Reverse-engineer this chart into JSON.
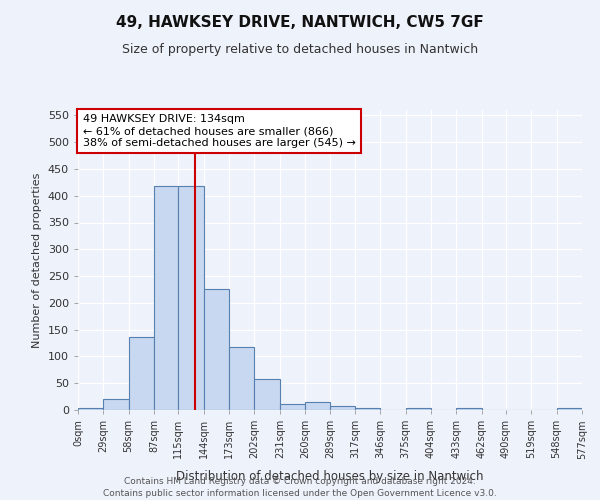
{
  "title1": "49, HAWKSEY DRIVE, NANTWICH, CW5 7GF",
  "title2": "Size of property relative to detached houses in Nantwich",
  "xlabel": "Distribution of detached houses by size in Nantwich",
  "ylabel": "Number of detached properties",
  "bin_edges": [
    0,
    29,
    58,
    87,
    115,
    144,
    173,
    202,
    231,
    260,
    289,
    317,
    346,
    375,
    404,
    433,
    462,
    490,
    519,
    548,
    577
  ],
  "bar_heights": [
    3,
    20,
    137,
    418,
    418,
    225,
    117,
    58,
    12,
    15,
    7,
    3,
    0,
    3,
    0,
    3,
    0,
    0,
    0,
    3
  ],
  "bar_color": "#c8d8f0",
  "bar_edge_color": "#5580b0",
  "property_line_x": 134,
  "annotation_line1": "49 HAWKSEY DRIVE: 134sqm",
  "annotation_line2": "← 61% of detached houses are smaller (866)",
  "annotation_line3": "38% of semi-detached houses are larger (545) →",
  "annotation_box_color": "#ffffff",
  "annotation_box_edge_color": "#cc0000",
  "vline_color": "#cc0000",
  "ylim": [
    0,
    560
  ],
  "yticks": [
    0,
    50,
    100,
    150,
    200,
    250,
    300,
    350,
    400,
    450,
    500,
    550
  ],
  "bg_color": "#eef2fb",
  "grid_color": "#ffffff",
  "footer1": "Contains HM Land Registry data © Crown copyright and database right 2024.",
  "footer2": "Contains public sector information licensed under the Open Government Licence v3.0."
}
